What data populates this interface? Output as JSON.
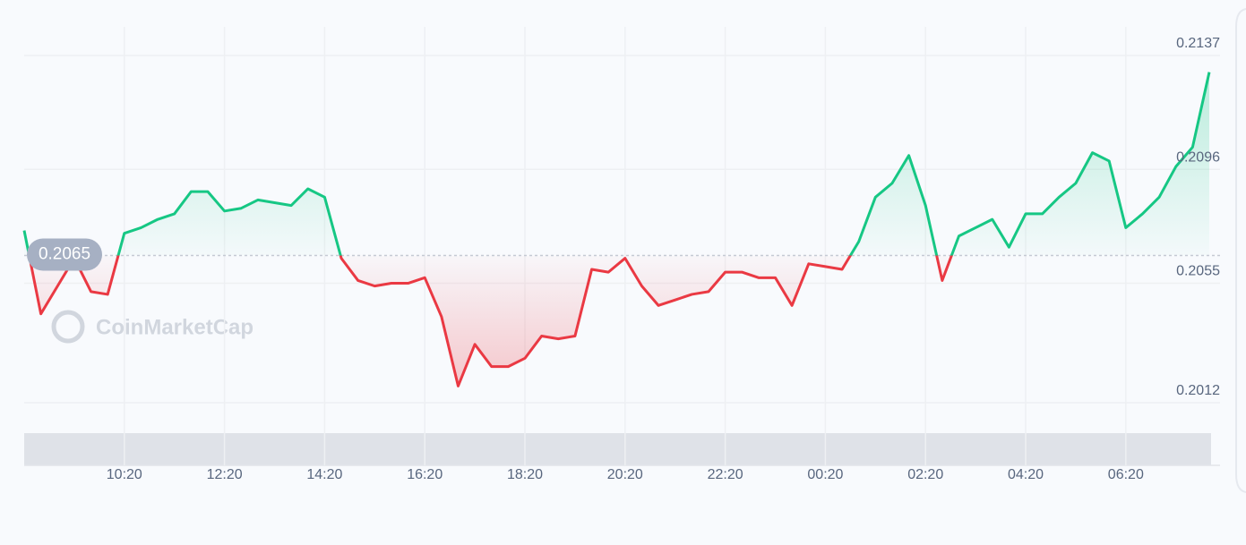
{
  "chart_data": {
    "type": "line",
    "watermark": "CoinMarketCap",
    "values": [
      0.2074,
      0.2044,
      0.2054,
      0.2064,
      0.2052,
      0.2051,
      0.2073,
      0.2075,
      0.2078,
      0.208,
      0.2088,
      0.2088,
      0.2081,
      0.2082,
      0.2085,
      0.2084,
      0.2083,
      0.2089,
      0.2086,
      0.2064,
      0.2056,
      0.2054,
      0.2055,
      0.2055,
      0.2057,
      0.2043,
      0.2018,
      0.2033,
      0.2025,
      0.2025,
      0.2028,
      0.2036,
      0.2035,
      0.2036,
      0.206,
      0.2059,
      0.2064,
      0.2054,
      0.2047,
      0.2049,
      0.2051,
      0.2052,
      0.2059,
      0.2059,
      0.2057,
      0.2057,
      0.2047,
      0.2062,
      0.2061,
      0.206,
      0.207,
      0.2086,
      0.2091,
      0.2101,
      0.2083,
      0.2056,
      0.2072,
      0.2075,
      0.2078,
      0.2068,
      0.208,
      0.208,
      0.2086,
      0.2091,
      0.2102,
      0.2099,
      0.2075,
      0.208,
      0.2086,
      0.2097,
      0.2104,
      0.2131
    ],
    "baseline": 0.2065,
    "up_color": "#16c784",
    "down_color": "#ea3943",
    "xlim": [
      0,
      71
    ],
    "xticks": [
      {
        "value": 6,
        "label": "10:20"
      },
      {
        "value": 12,
        "label": "12:20"
      },
      {
        "value": 18,
        "label": "14:20"
      },
      {
        "value": 24,
        "label": "16:20"
      },
      {
        "value": 30,
        "label": "18:20"
      },
      {
        "value": 36,
        "label": "20:20"
      },
      {
        "value": 42,
        "label": "22:20"
      },
      {
        "value": 48,
        "label": "00:20"
      },
      {
        "value": 54,
        "label": "02:20"
      },
      {
        "value": 60,
        "label": "04:20"
      },
      {
        "value": 66,
        "label": "06:20"
      }
    ],
    "ylim": [
      0.2012,
      0.2137
    ],
    "yticks": [
      0.2012,
      0.2055,
      0.2096,
      0.2137
    ],
    "grid": true
  }
}
